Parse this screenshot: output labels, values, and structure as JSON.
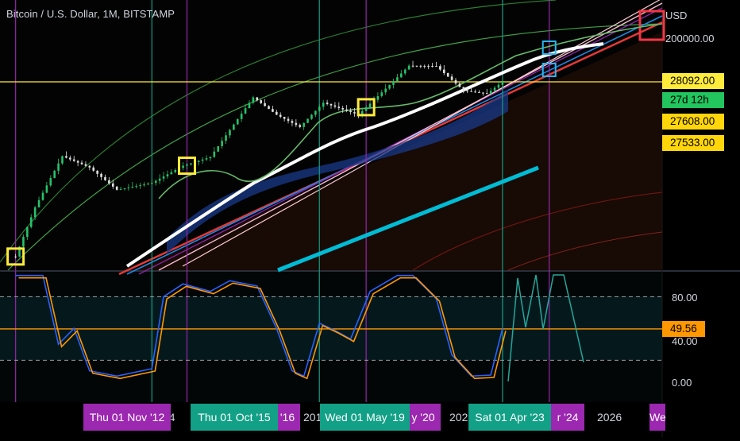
{
  "header": {
    "title": "Bitcoin / U.S. Dollar, 1M, BITSTAMP"
  },
  "colors": {
    "background": "#000000",
    "price_up": "#26c26a",
    "price_down": "#e0e0e0",
    "stoch_k": "#2962ff",
    "stoch_d": "#ff9800",
    "midline": "#ff9800",
    "yellow_line": "#ffeb3b",
    "teal_line": "#00bcd4",
    "purple_marker": "#9c27b0",
    "teal_marker": "#12a086"
  },
  "price_axis": {
    "currency": "USD",
    "level_top": "200000.00",
    "tags": [
      {
        "text": "28092.00",
        "bg": "#ffeb3b"
      },
      {
        "text": "27d 12h",
        "bg": "#22c55e"
      },
      {
        "text": "27608.00",
        "bg": "#ffd60a"
      },
      {
        "text": "27533.00",
        "bg": "#ffd60a"
      }
    ]
  },
  "oscillator_axis": {
    "ticks": [
      "80.00",
      "40.00",
      "0.00"
    ],
    "current_tag": {
      "text": "49.56",
      "bg": "#ff9800"
    }
  },
  "x_axis": {
    "markers": [
      {
        "label": "Thu 01 Nov '12",
        "bg": "#9c27b0"
      },
      {
        "label": "Thu 01 Oct '15",
        "bg": "#12a086"
      },
      {
        "label": "Wed 01 May '19",
        "bg": "#12a086"
      },
      {
        "label": "Sat 01 Apr '23",
        "bg": "#12a086"
      }
    ],
    "partial_marker_labels": [
      {
        "text": "'16",
        "bg": "#9c27b0"
      },
      {
        "text": "y '20",
        "bg": "#9c27b0"
      },
      {
        "text": "r '24",
        "bg": "#9c27b0"
      },
      {
        "text": "We",
        "bg": "#9c27b0"
      }
    ],
    "plain_ticks": [
      "14",
      "201",
      "202",
      "2026"
    ]
  },
  "chart_data": [
    {
      "type": "line",
      "title": "Bitcoin / U.S. Dollar, 1M, BITSTAMP",
      "xlabel": "",
      "ylabel": "",
      "y_scale": "log",
      "x_range": [
        "2012-07",
        "2026-09"
      ],
      "y_range": [
        3,
        200000
      ],
      "series": [
        {
          "name": "",
          "x": [
            "2012-11",
            "2013-04",
            "2013-11",
            "2014-06",
            "2015-01",
            "2015-10",
            "2016-06",
            "2017-01",
            "2017-12",
            "2018-06",
            "2018-12",
            "2019-06",
            "2020-03",
            "2020-12",
            "2021-04",
            "2021-11",
            "2022-06",
            "2022-12",
            "2023-04"
          ],
          "values": [
            11,
            100,
            1000,
            600,
            220,
            300,
            650,
            960,
            14000,
            6400,
            3700,
            11000,
            6400,
            29000,
            58000,
            57000,
            19000,
            16500,
            28092
          ]
        }
      ],
      "horizontal_levels": [
        28092,
        200000
      ],
      "grid": false
    },
    {
      "type": "line",
      "title": "",
      "y_range": [
        0,
        100
      ],
      "midline": 49.56,
      "bands": [
        80,
        20
      ],
      "series": [
        {
          "name": "",
          "x": [
            "2012-11",
            "2013-06",
            "2013-10",
            "2014-02",
            "2014-06",
            "2015-01",
            "2015-10",
            "2016-01",
            "2016-06",
            "2017-01",
            "2017-06",
            "2018-01",
            "2018-06",
            "2018-10",
            "2019-01",
            "2019-05",
            "2019-09",
            "2020-01",
            "2020-06",
            "2021-01",
            "2021-05",
            "2021-11",
            "2022-03",
            "2022-08",
            "2023-01",
            "2023-04"
          ],
          "values": [
            100,
            100,
            35,
            50,
            10,
            5,
            12,
            80,
            92,
            85,
            95,
            90,
            50,
            10,
            5,
            55,
            48,
            40,
            85,
            100,
            100,
            78,
            25,
            5,
            6,
            50
          ]
        }
      ],
      "grid": false
    }
  ]
}
